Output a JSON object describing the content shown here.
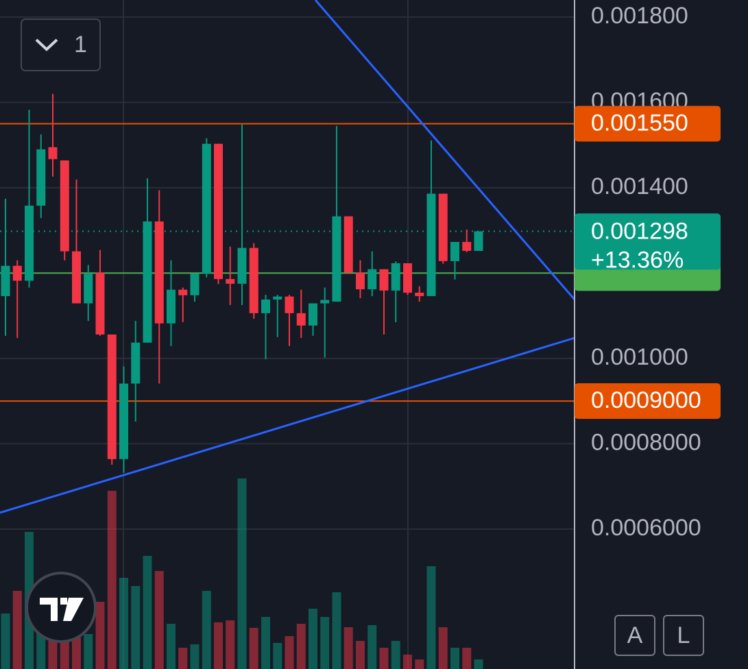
{
  "chart_data": {
    "type": "candlestick",
    "ylim": [
      0.000272,
      0.00184
    ],
    "yticks": [
      {
        "value": 0.0018,
        "label": "0.001800"
      },
      {
        "value": 0.0016,
        "label": "0.001600"
      },
      {
        "value": 0.0014,
        "label": "0.001400"
      },
      {
        "value": 0.001,
        "label": "0.001000"
      },
      {
        "value": 0.0008,
        "label": "0.0008000"
      },
      {
        "value": 0.0006,
        "label": "0.0006000"
      }
    ],
    "grid": true,
    "up_color": "#089981",
    "down_color": "#f23645",
    "open": [
      0.001146,
      0.001217,
      0.001182,
      0.001358,
      0.001495,
      0.001464,
      0.001251,
      0.001129,
      0.001201,
      0.001056,
      0.000764,
      0.000941,
      0.001037,
      0.001321,
      0.001082,
      0.001161,
      0.001148,
      0.001199,
      0.001503,
      0.001186,
      0.001175,
      0.001259,
      0.001106,
      0.001138,
      0.001145,
      0.001106,
      0.001077,
      0.001129,
      0.001133,
      0.001333,
      0.001201,
      0.001162,
      0.001209,
      0.001159,
      0.001223,
      0.001154,
      0.001146,
      0.001386,
      0.001228,
      0.001273,
      0.001252
    ],
    "high": [
      0.001374,
      0.00123,
      0.001583,
      0.001525,
      0.00162,
      0.001464,
      0.001419,
      0.001219,
      0.001254,
      0.001056,
      0.000981,
      0.001088,
      0.001422,
      0.001394,
      0.00123,
      0.001166,
      0.001199,
      0.001516,
      0.001503,
      0.001262,
      0.001548,
      0.00127,
      0.001149,
      0.001149,
      0.001149,
      0.001161,
      0.001129,
      0.001166,
      0.001545,
      0.001333,
      0.00123,
      0.001251,
      0.001209,
      0.001227,
      0.001223,
      0.001169,
      0.001511,
      0.001386,
      0.001273,
      0.001302,
      0.001297
    ],
    "low": [
      0.001053,
      0.001048,
      0.001166,
      0.001329,
      0.001426,
      0.00123,
      0.001129,
      0.001088,
      0.001053,
      0.000751,
      0.000732,
      0.000852,
      0.001037,
      0.000941,
      0.001029,
      0.001085,
      0.001133,
      0.00119,
      0.001174,
      0.001125,
      0.001125,
      0.001093,
      0.000998,
      0.00105,
      0.001029,
      0.001048,
      0.001053,
      0.001002,
      0.001133,
      0.001198,
      0.001141,
      0.001146,
      0.001056,
      0.001085,
      0.001149,
      0.001133,
      0.001146,
      0.001222,
      0.001185,
      0.001249,
      0.001252
    ],
    "close": [
      0.001217,
      0.001182,
      0.001358,
      0.00149,
      0.001467,
      0.001251,
      0.001129,
      0.001198,
      0.001056,
      0.000764,
      0.000941,
      0.001037,
      0.001321,
      0.001082,
      0.001161,
      0.001148,
      0.001199,
      0.001503,
      0.001186,
      0.001175,
      0.001259,
      0.001106,
      0.001138,
      0.001145,
      0.001106,
      0.001077,
      0.001129,
      0.001137,
      0.001333,
      0.001201,
      0.001162,
      0.001209,
      0.001159,
      0.001223,
      0.001154,
      0.001146,
      0.001386,
      0.001228,
      0.001273,
      0.001252,
      0.001298
    ],
    "volume": [
      81,
      114,
      200,
      71,
      46,
      51,
      46,
      51,
      98,
      260,
      133,
      121,
      165,
      143,
      66,
      31,
      36,
      114,
      68,
      71,
      278,
      60,
      76,
      38,
      48,
      66,
      88,
      76,
      112,
      61,
      41,
      64,
      31,
      41,
      21,
      14,
      150,
      61,
      31,
      31,
      14
    ],
    "levels": [
      {
        "value": 0.00155,
        "label": "0.001550",
        "color": "#e65100"
      },
      {
        "value": 0.0009,
        "label": "0.0009000",
        "color": "#e65100"
      },
      {
        "value": 0.0012,
        "color": "#4caf50"
      }
    ],
    "last_price": {
      "value": 0.001298,
      "label": "0.001298",
      "change": {
        "value": 13.36,
        "label": "+13.36%"
      },
      "color": "#089981"
    }
  },
  "ui": {
    "interval": "1",
    "buttons": [
      "A",
      "L"
    ]
  }
}
